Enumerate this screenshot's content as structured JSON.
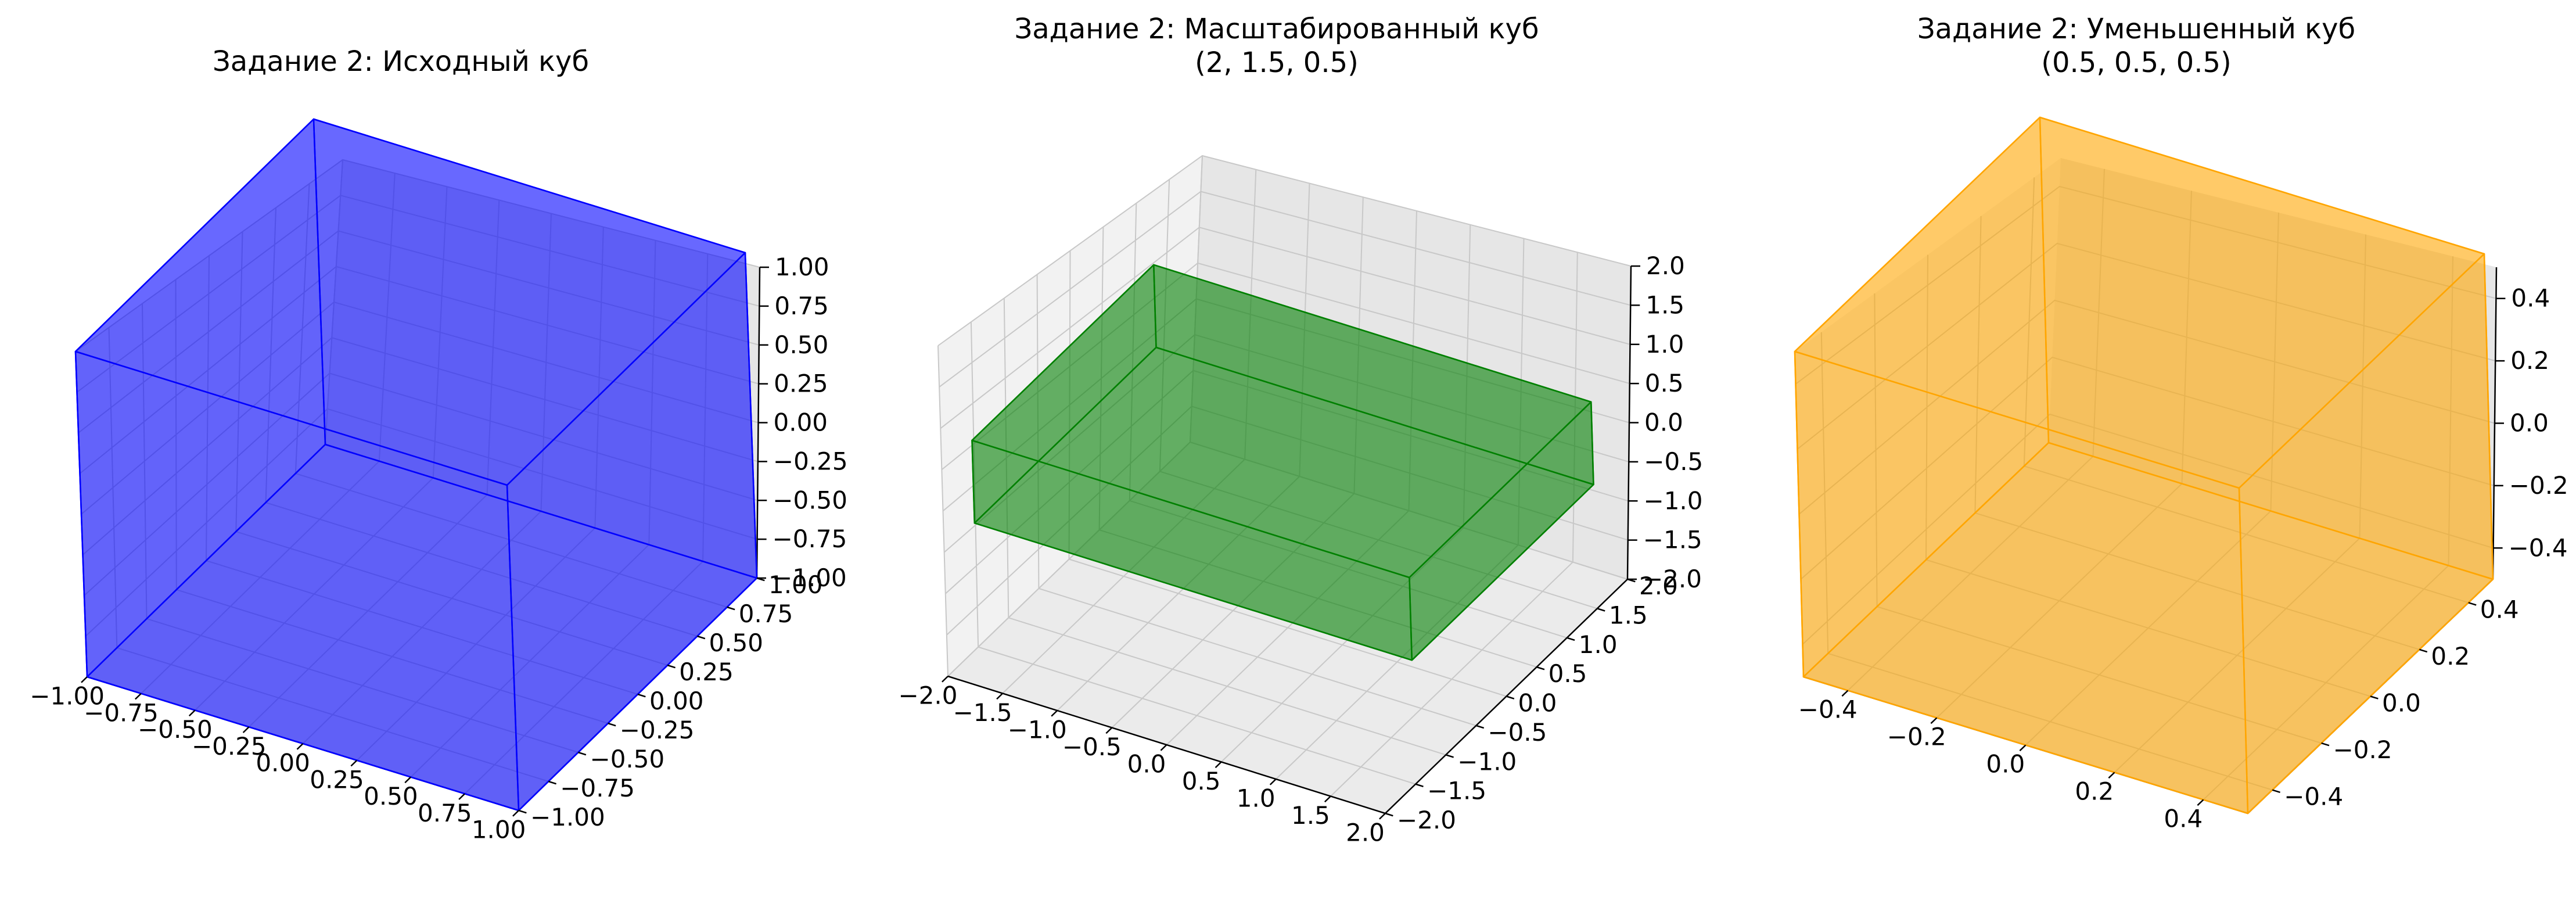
{
  "chart_data": [
    {
      "type": "3d-box",
      "title": "Задание 2: Исходный куб",
      "subtitle": "",
      "xlabel": "",
      "ylabel": "",
      "zlabel": "",
      "xlim": [
        -1,
        1
      ],
      "ylim": [
        -1,
        1
      ],
      "zlim": [
        -1,
        1
      ],
      "box": {
        "x": [
          -1,
          1
        ],
        "y": [
          -1,
          1
        ],
        "z": [
          -1,
          1
        ]
      },
      "face_color": "#0000ff",
      "edge_color": "#0000ff",
      "alpha": 0.7,
      "grid": true,
      "x_ticks": [
        "−1.00",
        "−0.75",
        "−0.50",
        "−0.25",
        "0.00",
        "0.25",
        "0.50",
        "0.75",
        "1.00"
      ],
      "y_ticks": [
        "−1.00",
        "−0.75",
        "−0.50",
        "−0.25",
        "0.00",
        "0.25",
        "0.50",
        "0.75",
        "1.00"
      ],
      "z_ticks": [
        "−1.00",
        "−0.75",
        "−0.50",
        "−0.25",
        "0.00",
        "0.25",
        "0.50",
        "0.75",
        "1.00"
      ]
    },
    {
      "type": "3d-box",
      "title": "Задание 2: Масштабированный куб",
      "subtitle": "(2, 1.5, 0.5)",
      "xlabel": "",
      "ylabel": "",
      "zlabel": "",
      "xlim": [
        -2,
        2
      ],
      "ylim": [
        -2,
        2
      ],
      "zlim": [
        -2,
        2
      ],
      "box": {
        "x": [
          -2,
          2
        ],
        "y": [
          -1.5,
          1.5
        ],
        "z": [
          -0.5,
          0.5
        ]
      },
      "face_color": "#008000",
      "edge_color": "#008000",
      "alpha": 0.7,
      "grid": true,
      "x_ticks": [
        "−2.0",
        "−1.5",
        "−1.0",
        "−0.5",
        "0.0",
        "0.5",
        "1.0",
        "1.5",
        "2.0"
      ],
      "y_ticks": [
        "−2.0",
        "−1.5",
        "−1.0",
        "−0.5",
        "0.0",
        "0.5",
        "1.0",
        "1.5",
        "2.0"
      ],
      "z_ticks": [
        "−2.0",
        "−1.5",
        "−1.0",
        "−0.5",
        "0.0",
        "0.5",
        "1.0",
        "1.5",
        "2.0"
      ]
    },
    {
      "type": "3d-box",
      "title": "Задание 2: Уменьшенный куб",
      "subtitle": "(0.5, 0.5, 0.5)",
      "xlabel": "",
      "ylabel": "",
      "zlabel": "",
      "xlim": [
        -0.5,
        0.5
      ],
      "ylim": [
        -0.5,
        0.5
      ],
      "zlim": [
        -0.5,
        0.5
      ],
      "box": {
        "x": [
          -0.5,
          0.5
        ],
        "y": [
          -0.5,
          0.5
        ],
        "z": [
          -0.5,
          0.5
        ]
      },
      "face_color": "#ffa500",
      "edge_color": "#ffa500",
      "alpha": 0.7,
      "grid": true,
      "x_ticks": [
        "−0.4",
        "−0.2",
        "0.0",
        "0.2",
        "0.4"
      ],
      "y_ticks": [
        "−0.4",
        "−0.2",
        "0.0",
        "0.2",
        "0.4"
      ],
      "z_ticks": [
        "−0.4",
        "−0.2",
        "0.0",
        "0.2",
        "0.4"
      ]
    }
  ]
}
